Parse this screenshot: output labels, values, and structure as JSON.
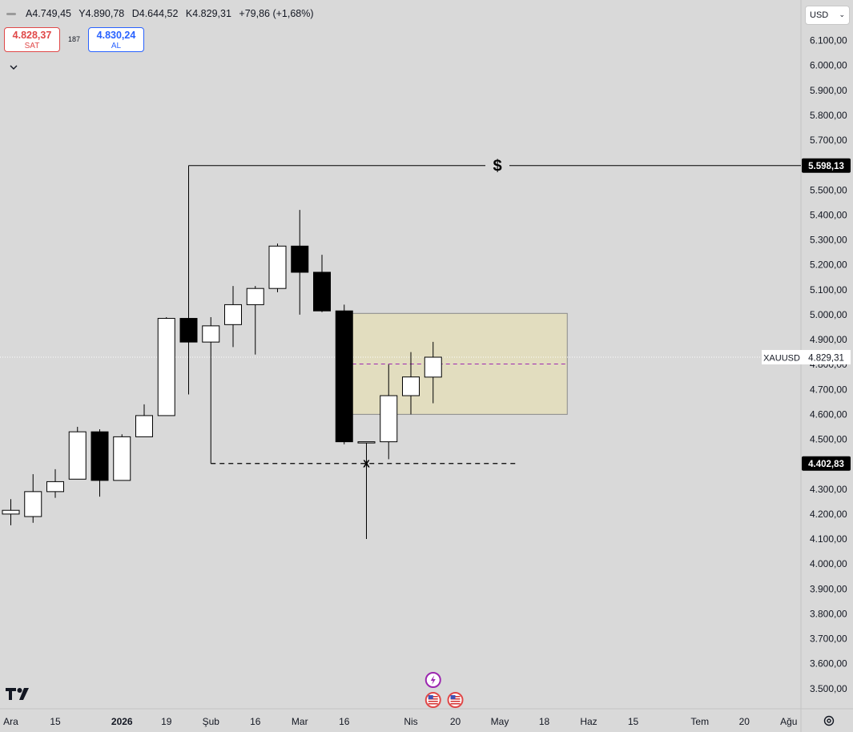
{
  "header": {
    "ohlc": {
      "open": "A4.749,45",
      "high": "Y4.890,78",
      "low": "D4.644,52",
      "close": "K4.829,31",
      "change": "+79,86 (+1,68%)"
    }
  },
  "trade": {
    "sell_price": "4.828,37",
    "sell_label": "SAT",
    "spread": "187",
    "buy_price": "4.830,24",
    "buy_label": "AL"
  },
  "currency": "USD",
  "icons": [
    "chevron-down-icon",
    "tradingview-logo-icon",
    "settings-icon",
    "lightning-event-icon",
    "us-flag-event-icon"
  ],
  "colors": {
    "background": "#d9d9d9",
    "candle_up": "#ffffff",
    "candle_down": "#000000",
    "zone_fill": "#e2ddbf",
    "mid_line": "#9c27b0"
  },
  "chart_data": {
    "type": "candlestick",
    "symbol": "XAUUSD",
    "timeframe": "weekly",
    "ylim": [
      3450,
      6150
    ],
    "y_ticks": [
      3500,
      3600,
      3700,
      3800,
      3900,
      4000,
      4100,
      4200,
      4300,
      4400,
      4500,
      4600,
      4700,
      4800,
      4900,
      5000,
      5100,
      5200,
      5300,
      5400,
      5500,
      5600,
      5700,
      5800,
      5900,
      6000,
      6100
    ],
    "y_tick_labels": [
      "3.500,00",
      "3.600,00",
      "3.700,00",
      "3.800,00",
      "3.900,00",
      "4.000,00",
      "4.100,00",
      "4.200,00",
      "4.300,00",
      "4.400,00",
      "4.500,00",
      "4.600,00",
      "4.700,00",
      "4.800,00",
      "4.900,00",
      "5.000,00",
      "5.100,00",
      "5.200,00",
      "5.300,00",
      "5.400,00",
      "5.500,00",
      "5.600,00",
      "5.700,00",
      "5.800,00",
      "5.900,00",
      "6.000,00",
      "6.100,00"
    ],
    "x_labels": [
      {
        "i": 0,
        "label": "Ara"
      },
      {
        "i": 2,
        "label": "15"
      },
      {
        "i": 5,
        "label": "2026"
      },
      {
        "i": 7,
        "label": "19"
      },
      {
        "i": 9,
        "label": "Şub"
      },
      {
        "i": 11,
        "label": "16"
      },
      {
        "i": 13,
        "label": "Mar"
      },
      {
        "i": 15,
        "label": "16"
      },
      {
        "i": 18,
        "label": "Nis"
      },
      {
        "i": 20,
        "label": "20"
      },
      {
        "i": 22,
        "label": "May"
      },
      {
        "i": 24,
        "label": "18"
      },
      {
        "i": 26,
        "label": "Haz"
      },
      {
        "i": 28,
        "label": "15"
      },
      {
        "i": 31,
        "label": "Tem"
      },
      {
        "i": 33,
        "label": "20"
      },
      {
        "i": 35,
        "label": "Ağu"
      }
    ],
    "candles": [
      {
        "o": 4200,
        "h": 4260,
        "l": 4155,
        "c": 4215
      },
      {
        "o": 4190,
        "h": 4360,
        "l": 4165,
        "c": 4290
      },
      {
        "o": 4290,
        "h": 4380,
        "l": 4265,
        "c": 4330
      },
      {
        "o": 4340,
        "h": 4550,
        "l": 4340,
        "c": 4530
      },
      {
        "o": 4530,
        "h": 4540,
        "l": 4270,
        "c": 4335
      },
      {
        "o": 4335,
        "h": 4520,
        "l": 4335,
        "c": 4510
      },
      {
        "o": 4510,
        "h": 4640,
        "l": 4510,
        "c": 4595
      },
      {
        "o": 4595,
        "h": 4990,
        "l": 4595,
        "c": 4985
      },
      {
        "o": 4985,
        "h": 5598.13,
        "l": 4680,
        "c": 4890
      },
      {
        "o": 4890,
        "h": 4990,
        "l": 4402.83,
        "c": 4955
      },
      {
        "o": 4960,
        "h": 5115,
        "l": 4870,
        "c": 5040
      },
      {
        "o": 5040,
        "h": 5115,
        "l": 4840,
        "c": 5105
      },
      {
        "o": 5105,
        "h": 5285,
        "l": 5090,
        "c": 5275
      },
      {
        "o": 5275,
        "h": 5420,
        "l": 5000,
        "c": 5170
      },
      {
        "o": 5170,
        "h": 5240,
        "l": 5010,
        "c": 5015
      },
      {
        "o": 5015,
        "h": 5040,
        "l": 4480,
        "c": 4490
      },
      {
        "o": 4490,
        "h": 4490,
        "l": 4100,
        "c": 4490
      },
      {
        "o": 4490,
        "h": 4800,
        "l": 4420,
        "c": 4675
      },
      {
        "o": 4675,
        "h": 4850,
        "l": 4600,
        "c": 4750
      },
      {
        "o": 4749.45,
        "h": 4890.78,
        "l": 4644.52,
        "c": 4829.31
      }
    ],
    "zone": {
      "from_i": 15,
      "to_i": 25,
      "top": 5005,
      "bottom": 4600,
      "mid": 4802
    },
    "hline_top": {
      "price": 5598.13,
      "from_i": 8,
      "label": "5.598,13",
      "marker": "$"
    },
    "hline_bottom": {
      "price": 4402.83,
      "from_i": 9,
      "to_i": 23,
      "label": "4.402,83",
      "marker": "X",
      "marker_i": 16
    },
    "last_price": {
      "price": 4829.31,
      "label": "4.829,31",
      "symbol": "XAUUSD"
    },
    "events": [
      {
        "i": 19,
        "type": "lightning"
      },
      {
        "i": 19,
        "type": "us-flag"
      },
      {
        "i": 20,
        "type": "us-flag"
      }
    ]
  }
}
